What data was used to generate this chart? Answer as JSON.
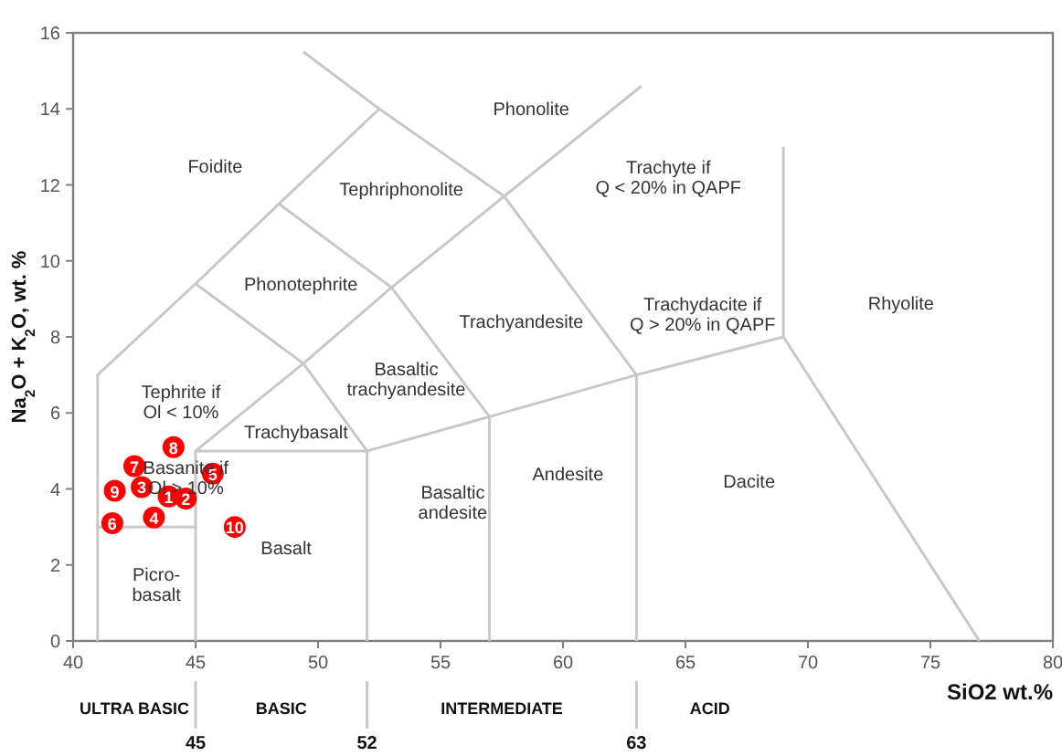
{
  "chart_data": {
    "type": "scatter",
    "xlabel": "SiO2 wt.%",
    "ylabel": "Na$_{2}$O + K$_{2}$O, wt. %",
    "xlim": [
      40,
      80
    ],
    "ylim": [
      0,
      16
    ],
    "xticks": [
      40,
      45,
      50,
      55,
      60,
      65,
      70,
      75,
      80
    ],
    "yticks": [
      0,
      2,
      4,
      6,
      8,
      10,
      12,
      14,
      16
    ],
    "grid": false,
    "series": [
      {
        "type": "line",
        "color": "#c8c8c8",
        "x": [
          41,
          41,
          45
        ],
        "values": [
          0,
          3,
          3
        ]
      },
      {
        "type": "line",
        "color": "#c8c8c8",
        "x": [
          41,
          41,
          45,
          48.4,
          52.5,
          57.6,
          63.2
        ],
        "values": [
          3,
          7,
          9.4,
          11.5,
          14,
          11.7,
          14.6
        ]
      },
      {
        "type": "line",
        "color": "#c8c8c8",
        "x": [
          49.4,
          52.5
        ],
        "values": [
          15.5,
          14
        ]
      },
      {
        "type": "line",
        "color": "#c8c8c8",
        "x": [
          45,
          45,
          52,
          57,
          63,
          69,
          69
        ],
        "values": [
          0,
          5,
          5,
          5.9,
          7,
          8,
          13
        ]
      },
      {
        "type": "line",
        "color": "#c8c8c8",
        "x": [
          45,
          49.4,
          52
        ],
        "values": [
          5,
          7.3,
          5
        ]
      },
      {
        "type": "line",
        "color": "#c8c8c8",
        "x": [
          45,
          49.4
        ],
        "values": [
          9.4,
          7.3
        ]
      },
      {
        "type": "line",
        "color": "#c8c8c8",
        "x": [
          48.4,
          53,
          57.6
        ],
        "values": [
          11.5,
          9.3,
          11.7
        ]
      },
      {
        "type": "line",
        "color": "#c8c8c8",
        "x": [
          49.4,
          53,
          57
        ],
        "values": [
          7.3,
          9.3,
          5.9
        ]
      },
      {
        "type": "line",
        "color": "#c8c8c8",
        "x": [
          57.6,
          63
        ],
        "values": [
          11.7,
          7
        ]
      },
      {
        "type": "line",
        "color": "#c8c8c8",
        "x": [
          52,
          52
        ],
        "values": [
          0,
          5
        ]
      },
      {
        "type": "line",
        "color": "#c8c8c8",
        "x": [
          57,
          57
        ],
        "values": [
          0,
          5.9
        ]
      },
      {
        "type": "line",
        "color": "#c8c8c8",
        "x": [
          63,
          63
        ],
        "values": [
          0,
          7
        ]
      },
      {
        "type": "line",
        "color": "#c8c8c8",
        "x": [
          69,
          77
        ],
        "values": [
          8,
          0
        ]
      },
      {
        "name": "1",
        "marker": "circle",
        "color": "#ff0000",
        "x": [
          43.9
        ],
        "values": [
          3.8
        ]
      },
      {
        "name": "2",
        "marker": "circle",
        "color": "#ff0000",
        "x": [
          44.6
        ],
        "values": [
          3.75
        ]
      },
      {
        "name": "3",
        "marker": "circle",
        "color": "#ff0000",
        "x": [
          42.8
        ],
        "values": [
          4.05
        ]
      },
      {
        "name": "4",
        "marker": "circle",
        "color": "#ff0000",
        "x": [
          43.3
        ],
        "values": [
          3.25
        ]
      },
      {
        "name": "5",
        "marker": "circle",
        "color": "#ff0000",
        "x": [
          45.7
        ],
        "values": [
          4.4
        ]
      },
      {
        "name": "6",
        "marker": "circle",
        "color": "#ff0000",
        "x": [
          41.6
        ],
        "values": [
          3.1
        ]
      },
      {
        "name": "7",
        "marker": "circle",
        "color": "#ff0000",
        "x": [
          42.5
        ],
        "values": [
          4.6
        ]
      },
      {
        "name": "8",
        "marker": "circle",
        "color": "#ff0000",
        "x": [
          44.1
        ],
        "values": [
          5.1
        ]
      },
      {
        "name": "9",
        "marker": "circle",
        "color": "#ff0000",
        "x": [
          41.7
        ],
        "values": [
          3.95
        ]
      },
      {
        "name": "10",
        "marker": "circle",
        "color": "#ff0000",
        "x": [
          46.6
        ],
        "values": [
          3.0
        ]
      }
    ],
    "annotations": [
      "Phonolite",
      "Foidite",
      "Tephriphonolite",
      "Phonotephrite",
      "Trachyandesite",
      "Trachyte if\nQ < 20% in QAPF",
      "Trachydacite if\nQ > 20% in QAPF",
      "Rhyolite",
      "Tephrite if\nOl < 10%",
      "Basaltic\ntrachyandesite",
      "Trachybasalt",
      "Basanite if\nOl > 10%",
      "Basalt",
      "Basaltic\nandesite",
      "Andesite",
      "Dacite",
      "Picro-\nbasalt",
      "ULTRA BASIC",
      "BASIC",
      "INTERMEDIATE",
      "ACID",
      "45",
      "52",
      "63"
    ]
  }
}
